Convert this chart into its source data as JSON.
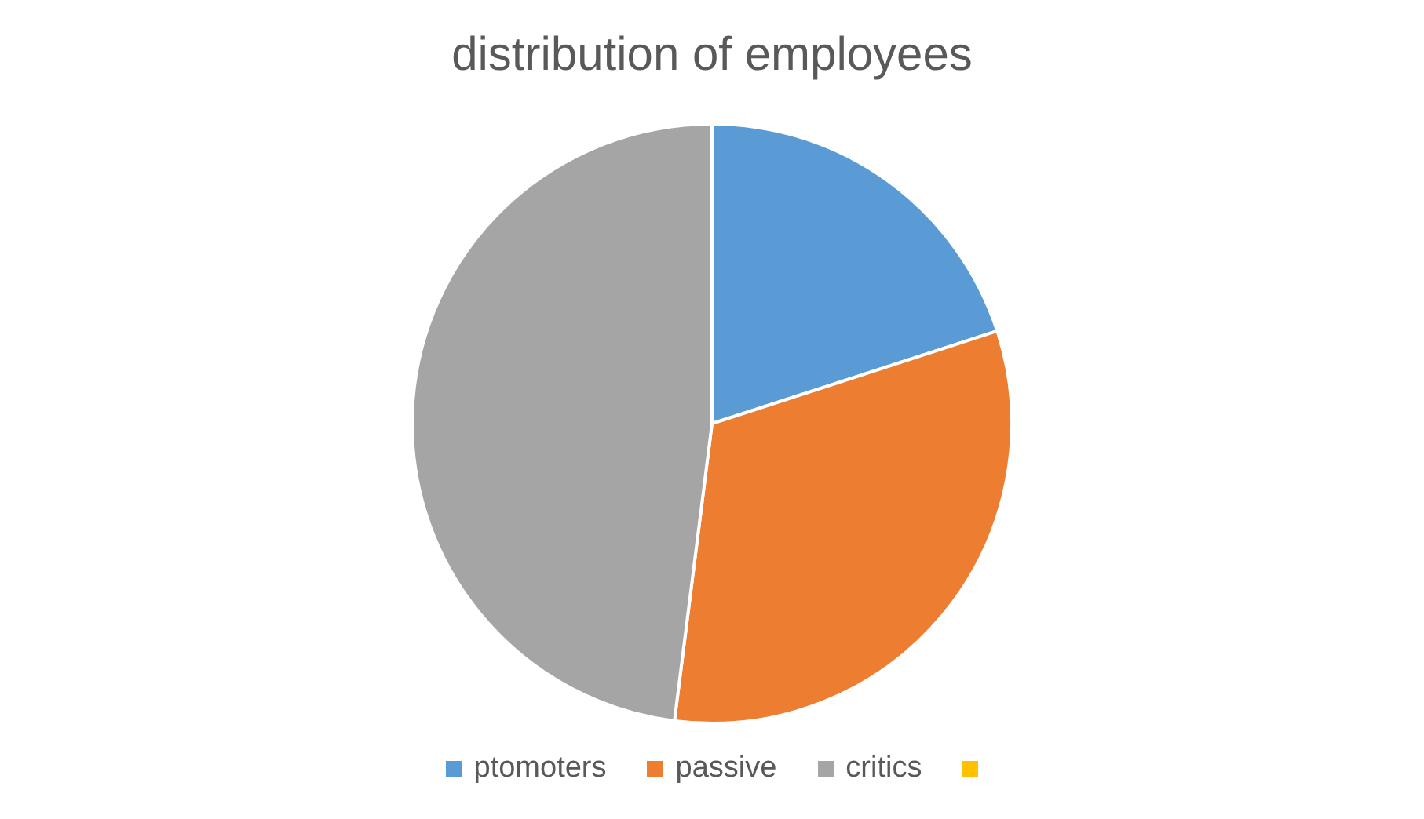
{
  "chart_data": {
    "type": "pie",
    "title": "distribution of employees",
    "categories": [
      "ptomoters",
      "passive",
      "critics",
      null
    ],
    "values": [
      20,
      32,
      48,
      0
    ],
    "colors": [
      "#5b9bd5",
      "#ed7d31",
      "#a5a5a5",
      "#ffc000"
    ],
    "legend": "bottom"
  }
}
